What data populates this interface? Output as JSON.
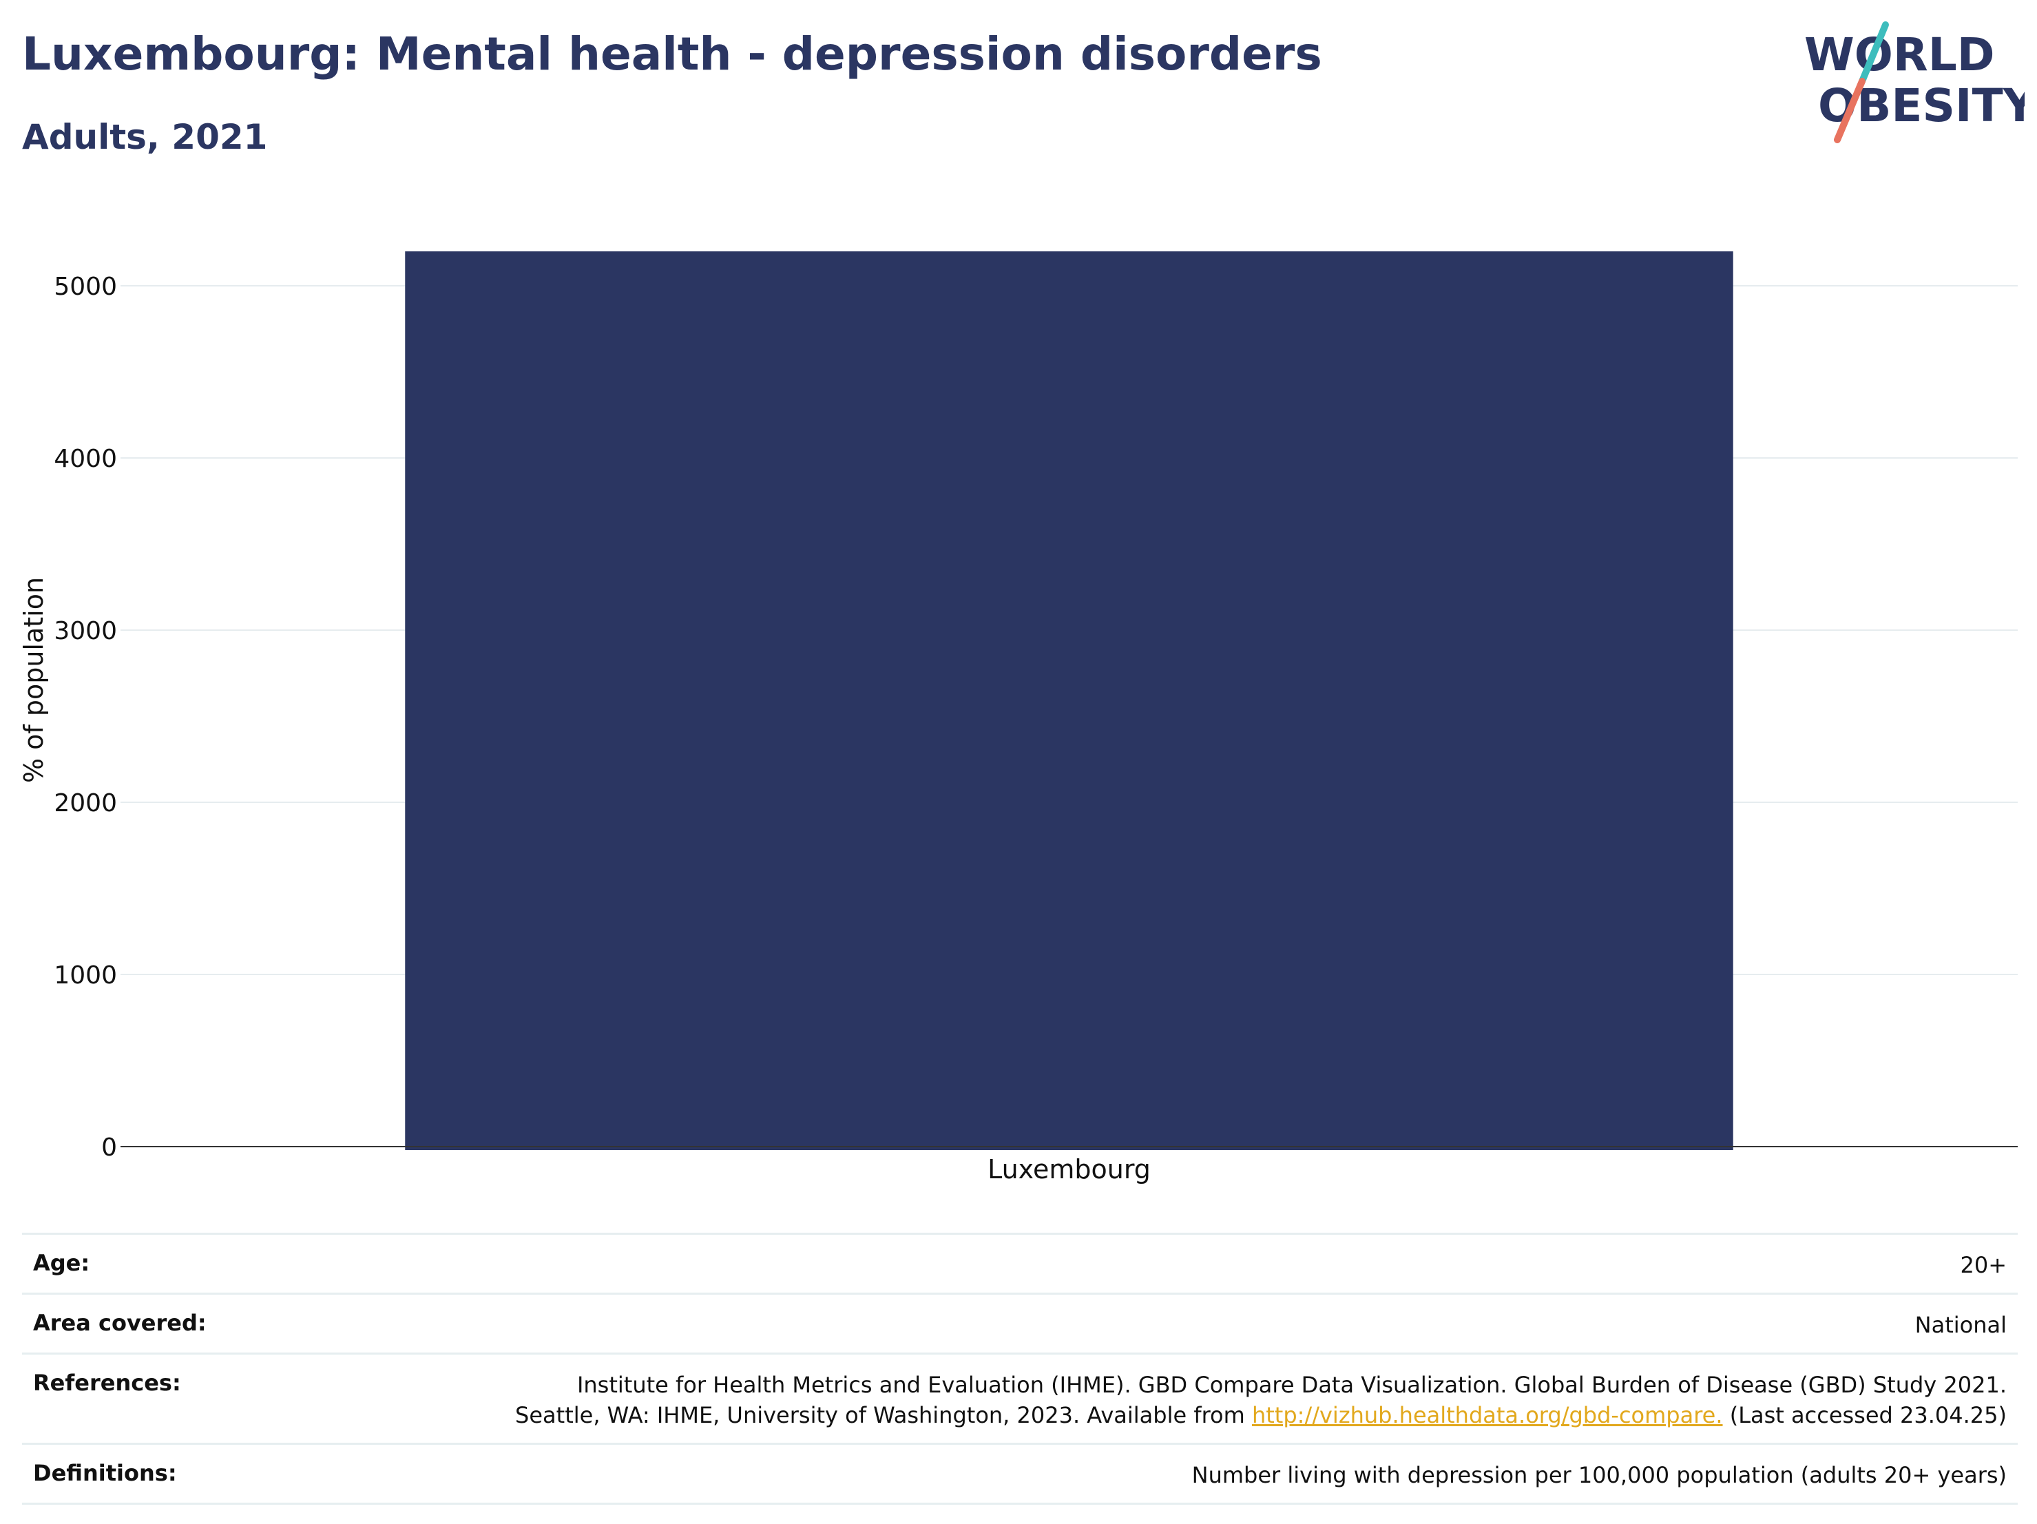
{
  "header": {
    "title": "Luxembourg: Mental health - depression disorders",
    "subtitle": "Adults, 2021"
  },
  "logo": {
    "line1": "WORLD",
    "line2": "OBESITY",
    "colors": {
      "text": "#2b3662",
      "slash_top": "#3dbdbd",
      "slash_bottom": "#e8735f"
    }
  },
  "chart_data": {
    "type": "bar",
    "categories": [
      "Luxembourg"
    ],
    "values": [
      5200
    ],
    "ylabel": "% of population",
    "xlabel": "",
    "ylim": [
      0,
      5500
    ],
    "yticks": [
      0,
      1000,
      2000,
      3000,
      4000,
      5000
    ],
    "grid": true,
    "bar_color": "#2b3662"
  },
  "meta": {
    "age_label": "Age:",
    "age_value": "20+",
    "area_label": "Area covered:",
    "area_value": "National",
    "references_label": "References:",
    "references_line1": "Institute for Health Metrics and Evaluation (IHME). GBD Compare Data Visualization. Global Burden of Disease (GBD) Study 2021.",
    "references_line2_pre": "Seattle, WA: IHME, University of Washington, 2023. Available from ",
    "references_link": "http://vizhub.healthdata.org/gbd-compare.",
    "references_line2_post": " (Last accessed 23.04.25)",
    "definitions_label": "Definitions:",
    "definitions_value": "Number living with depression per 100,000 population (adults 20+ years)"
  }
}
